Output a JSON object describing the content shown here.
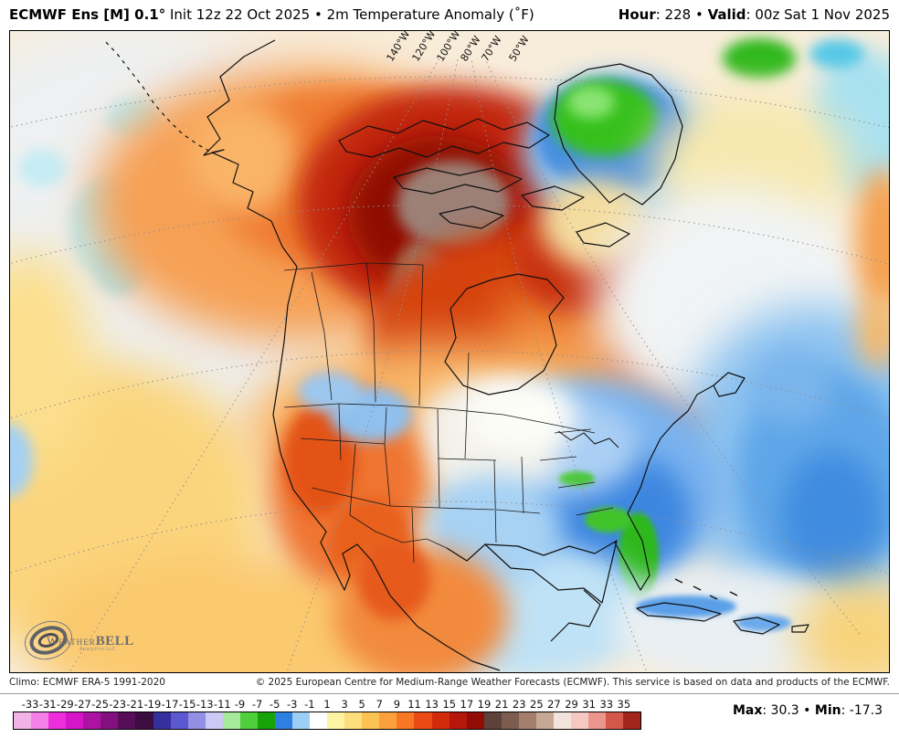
{
  "header": {
    "model_bold": "ECMWF Ens [M] 0.1",
    "degree": "°",
    "title_rest": " Init 12z 22 Oct 2025 • 2m Temperature Anomaly (˚F)",
    "hour_label": "Hour",
    "hour_value": "228",
    "separator": "•",
    "valid_label": "Valid",
    "valid_value": "00z Sat 1 Nov 2025"
  },
  "map": {
    "lon_labels": [
      "140°W",
      "120°W",
      "100°W",
      "80°W",
      "70°W",
      "50°W"
    ],
    "logo": {
      "wordmark_small": "Weather",
      "wordmark_big": "BELL",
      "subtext": "Analytics LLC"
    }
  },
  "footer": {
    "climo": "Climo: ECMWF ERA-5 1991-2020",
    "copyright": "© 2025 European Centre for Medium-Range Weather Forecasts (ECMWF). This service is based on data and products of the ECMWF.",
    "max_label": "Max",
    "max_value": "30.3",
    "separator": "•",
    "min_label": "Min",
    "min_value": "-17.3"
  },
  "chart_data": {
    "type": "heatmap",
    "title": "ECMWF Ens [M] 0.1° 2m Temperature Anomaly (˚F)",
    "init": "12z 22 Oct 2025",
    "forecast_hour": 228,
    "valid": "00z Sat 1 Nov 2025",
    "climatology": "ECMWF ERA-5 1991-2020",
    "domain_max": 30.3,
    "domain_min": -17.3,
    "colorbar_unit": "˚F anomaly",
    "colorbar_ticks": [
      -33,
      -31,
      -29,
      -27,
      -25,
      -23,
      -21,
      -19,
      -17,
      -15,
      -13,
      -11,
      -9,
      -7,
      -5,
      -3,
      -1,
      1,
      3,
      5,
      7,
      9,
      11,
      13,
      15,
      17,
      19,
      21,
      23,
      25,
      27,
      29,
      31,
      33,
      35
    ],
    "colorbar_colors": [
      "#f2b2e6",
      "#f37fe9",
      "#ee2edd",
      "#d614c8",
      "#ab13a0",
      "#841080",
      "#570d58",
      "#3b0d41",
      "#34309e",
      "#5b58d0",
      "#938fe4",
      "#cccaf4",
      "#a5e99b",
      "#4ecf3b",
      "#17a309",
      "#2e7fe2",
      "#9ccff5",
      "#ffffff",
      "#fdf4a3",
      "#fdde7d",
      "#fcc252",
      "#fba03c",
      "#f87725",
      "#ea4a14",
      "#d22b0c",
      "#b5170a",
      "#900c04",
      "#5e423a",
      "#7d5c50",
      "#a17f6c",
      "#c6a894",
      "#f2e4dc",
      "#f6c8c2",
      "#ea968c",
      "#d5564a",
      "#a2261c"
    ],
    "regions_depicted": [
      {
        "area": "Canadian Arctic / Nunavut",
        "anomaly": "+17 to +27 (dark red with gray-brown core)"
      },
      {
        "area": "Northwest Canada / Alaska interior",
        "anomaly": "+5 to +13 (orange)"
      },
      {
        "area": "Hudson Bay and eastern Canada",
        "anomaly": "+9 to +17 (red-orange)"
      },
      {
        "area": "Greenland",
        "anomaly": "-7 to -13 (green core, blue ring)"
      },
      {
        "area": "Southeast United States / Florida",
        "anomaly": "-3 to -13 (blue, green over Florida)"
      },
      {
        "area": "Western United States",
        "anomaly": "+3 to +11 (mottled orange)"
      },
      {
        "area": "North Atlantic (east)",
        "anomaly": "-1 to -5 (broad light blue blob)"
      },
      {
        "area": "North Pacific",
        "anomaly": "0 to -3 (pale, light blue patches)"
      },
      {
        "area": "Mexico",
        "anomaly": "+3 to +9 (orange)"
      },
      {
        "area": "Caribbean islands",
        "anomaly": "-1 to -5 (blue islands)"
      }
    ]
  }
}
